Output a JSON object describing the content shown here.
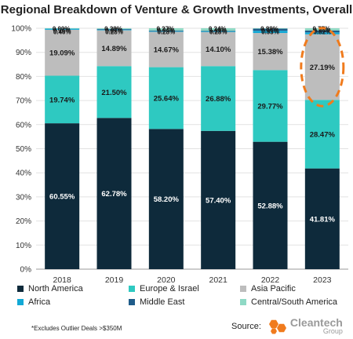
{
  "chart_data": {
    "type": "bar",
    "stacked": true,
    "title": "Regional Breakdown of Venture & Growth Investments, Overall",
    "categories": [
      "2018",
      "2019",
      "2020",
      "2021",
      "2022",
      "2023"
    ],
    "ylim": [
      0,
      100
    ],
    "y_ticks": [
      "0%",
      "10%",
      "20%",
      "30%",
      "40%",
      "50%",
      "60%",
      "70%",
      "80%",
      "90%",
      "100%"
    ],
    "grid": true,
    "legend_position": "bottom",
    "series": [
      {
        "name": "North America",
        "color": "#0e2a3b",
        "values": [
          60.55,
          62.78,
          58.2,
          57.4,
          52.88,
          41.81
        ],
        "labels": [
          "60.55%",
          "62.78%",
          "58.20%",
          "57.40%",
          "52.88%",
          "41.81%"
        ]
      },
      {
        "name": "Europe & Israel",
        "color": "#2ec9c1",
        "values": [
          19.74,
          21.5,
          25.64,
          26.88,
          29.77,
          28.47
        ],
        "labels": [
          "19.74%",
          "21.50%",
          "25.64%",
          "26.88%",
          "29.77%",
          "28.47%"
        ]
      },
      {
        "name": "Asia Pacific",
        "color": "#bdbdbd",
        "values": [
          19.09,
          14.89,
          14.67,
          14.1,
          15.38,
          27.19
        ],
        "labels": [
          "19.09%",
          "14.89%",
          "14.67%",
          "14.10%",
          "15.38%",
          "27.19%"
        ]
      },
      {
        "name": "Africa",
        "color": "#12a9d6",
        "values": [
          0.46,
          0.28,
          0.28,
          0.28,
          0.93,
          0.82
        ],
        "labels": [
          "0.46%",
          "0.28%",
          "0.28%",
          "0.28%",
          "0.93%",
          "0.82%"
        ]
      },
      {
        "name": "Middle East",
        "color": "#1f5c8a",
        "values": [
          0.0,
          0.28,
          0.27,
          0.24,
          0.88,
          0.77
        ],
        "labels": [
          "0.00%",
          "0.28%",
          "0.27%",
          "0.24%",
          "0.88%",
          "0.77%"
        ]
      },
      {
        "name": "Central/South America",
        "color": "#8fd9c5",
        "values": [
          0.16,
          0.27,
          0.94,
          1.1,
          0.16,
          0.94
        ],
        "labels": [
          "0.16%",
          "0.27%",
          "0.94%",
          "1.10%",
          "0.16%",
          "0.94%"
        ]
      }
    ],
    "annotation": {
      "type": "dashed-ellipse",
      "color": "#f07b1d",
      "target_category": "2023",
      "target_series": "Asia Pacific"
    }
  },
  "footnote": "*Excludes Outlier Deals >$350M",
  "source": {
    "label": "Source:",
    "logo_name": "Cleantech",
    "logo_group": "Group",
    "logo_color": "#f07b1d"
  }
}
